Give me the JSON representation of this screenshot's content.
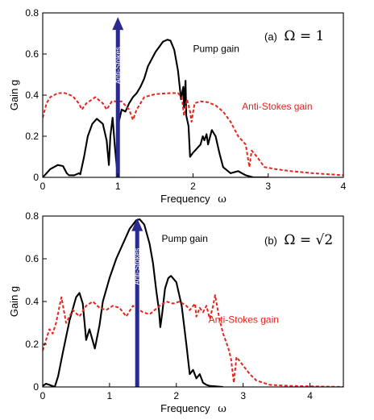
{
  "chart_data": [
    {
      "type": "line",
      "panel_label_prefix": "(a)",
      "panel_label_eq": "Ω = 1",
      "xlabel": "Frequency",
      "xlabel_symbol": "ω",
      "ylabel": "Gain g",
      "xlim": [
        0,
        4
      ],
      "ylim": [
        0,
        0.8
      ],
      "xticks": [
        "0",
        "1",
        "2",
        "3",
        "4"
      ],
      "yticks": [
        "0",
        "0.2",
        "0.4",
        "0.6",
        "0.8"
      ],
      "xtick_values": [
        0,
        1,
        2,
        3,
        4
      ],
      "ytick_values": [
        0,
        0.2,
        0.4,
        0.6,
        0.8
      ],
      "arrow": {
        "x": 1.0,
        "y_top": 0.78,
        "label": "Anti-Stokes",
        "color": "#2a2a8f"
      },
      "series": [
        {
          "name": "Pump gain",
          "color": "#000000",
          "style": "solid",
          "points": [
            [
              0.0,
              0.0
            ],
            [
              0.05,
              0.02
            ],
            [
              0.1,
              0.04
            ],
            [
              0.2,
              0.06
            ],
            [
              0.27,
              0.055
            ],
            [
              0.32,
              0.02
            ],
            [
              0.35,
              0.01
            ],
            [
              0.42,
              0.01
            ],
            [
              0.48,
              0.02
            ],
            [
              0.5,
              0.015
            ],
            [
              0.55,
              0.1
            ],
            [
              0.6,
              0.2
            ],
            [
              0.66,
              0.26
            ],
            [
              0.72,
              0.285
            ],
            [
              0.8,
              0.26
            ],
            [
              0.85,
              0.18
            ],
            [
              0.88,
              0.06
            ],
            [
              0.9,
              0.2
            ],
            [
              0.93,
              0.29
            ],
            [
              0.96,
              0.15
            ],
            [
              0.985,
              0.05
            ],
            [
              1.0,
              0.25
            ],
            [
              1.05,
              0.33
            ],
            [
              1.1,
              0.32
            ],
            [
              1.15,
              0.36
            ],
            [
              1.2,
              0.39
            ],
            [
              1.25,
              0.41
            ],
            [
              1.3,
              0.44
            ],
            [
              1.35,
              0.48
            ],
            [
              1.4,
              0.54
            ],
            [
              1.5,
              0.61
            ],
            [
              1.6,
              0.66
            ],
            [
              1.66,
              0.67
            ],
            [
              1.7,
              0.665
            ],
            [
              1.75,
              0.62
            ],
            [
              1.8,
              0.52
            ],
            [
              1.84,
              0.38
            ],
            [
              1.86,
              0.42
            ],
            [
              1.87,
              0.44
            ],
            [
              1.88,
              0.34
            ],
            [
              1.9,
              0.47
            ],
            [
              1.91,
              0.3
            ],
            [
              1.94,
              0.25
            ],
            [
              1.96,
              0.1
            ],
            [
              2.0,
              0.12
            ],
            [
              2.05,
              0.14
            ],
            [
              2.1,
              0.16
            ],
            [
              2.13,
              0.2
            ],
            [
              2.15,
              0.18
            ],
            [
              2.18,
              0.21
            ],
            [
              2.2,
              0.16
            ],
            [
              2.25,
              0.23
            ],
            [
              2.3,
              0.2
            ],
            [
              2.35,
              0.12
            ],
            [
              2.4,
              0.05
            ],
            [
              2.5,
              0.02
            ],
            [
              2.6,
              0.03
            ],
            [
              2.7,
              0.01
            ],
            [
              2.8,
              0.0
            ],
            [
              3.0,
              0.0
            ]
          ]
        },
        {
          "name": "Anti-Stokes gain",
          "color": "#e8231c",
          "style": "dashed",
          "points": [
            [
              0.0,
              0.29
            ],
            [
              0.05,
              0.36
            ],
            [
              0.1,
              0.39
            ],
            [
              0.2,
              0.41
            ],
            [
              0.3,
              0.41
            ],
            [
              0.4,
              0.395
            ],
            [
              0.48,
              0.36
            ],
            [
              0.52,
              0.33
            ],
            [
              0.58,
              0.36
            ],
            [
              0.7,
              0.39
            ],
            [
              0.8,
              0.36
            ],
            [
              0.85,
              0.33
            ],
            [
              0.92,
              0.37
            ],
            [
              1.05,
              0.37
            ],
            [
              1.15,
              0.33
            ],
            [
              1.2,
              0.28
            ],
            [
              1.25,
              0.33
            ],
            [
              1.35,
              0.39
            ],
            [
              1.5,
              0.405
            ],
            [
              1.7,
              0.41
            ],
            [
              1.8,
              0.41
            ],
            [
              1.85,
              0.39
            ],
            [
              1.88,
              0.3
            ],
            [
              1.92,
              0.38
            ],
            [
              1.96,
              0.32
            ],
            [
              1.98,
              0.27
            ],
            [
              2.02,
              0.36
            ],
            [
              2.1,
              0.37
            ],
            [
              2.2,
              0.365
            ],
            [
              2.3,
              0.35
            ],
            [
              2.4,
              0.32
            ],
            [
              2.5,
              0.27
            ],
            [
              2.6,
              0.2
            ],
            [
              2.7,
              0.16
            ],
            [
              2.75,
              0.05
            ],
            [
              2.78,
              0.13
            ],
            [
              2.85,
              0.1
            ],
            [
              2.95,
              0.05
            ],
            [
              3.1,
              0.04
            ],
            [
              3.3,
              0.03
            ],
            [
              3.6,
              0.02
            ],
            [
              4.0,
              0.01
            ]
          ]
        }
      ],
      "annotations": [
        {
          "text": "Pump gain",
          "x": 2.0,
          "y": 0.61,
          "color": "#000000"
        },
        {
          "text": "Anti-Stokes gain",
          "x": 2.65,
          "y": 0.33,
          "color": "#e8231c"
        }
      ]
    },
    {
      "type": "line",
      "panel_label_prefix": "(b)",
      "panel_label_eq": "Ω = √2",
      "xlabel": "Frequency",
      "xlabel_symbol": "ω",
      "ylabel": "Gain g",
      "xlim": [
        0,
        4.5
      ],
      "ylim": [
        0,
        0.8
      ],
      "xticks": [
        "0",
        "1",
        "2",
        "3",
        "4"
      ],
      "yticks": [
        "0",
        "0.2",
        "0.4",
        "0.6",
        "0.8"
      ],
      "xtick_values": [
        0,
        1,
        2,
        3,
        4
      ],
      "ytick_values": [
        0,
        0.2,
        0.4,
        0.6,
        0.8
      ],
      "arrow": {
        "x": 1.414,
        "y_top": 0.79,
        "label": "Anti-Stokes",
        "color": "#2a2a8f"
      },
      "series": [
        {
          "name": "Pump gain",
          "color": "#000000",
          "style": "solid",
          "points": [
            [
              0.0,
              0.005
            ],
            [
              0.05,
              0.015
            ],
            [
              0.1,
              0.01
            ],
            [
              0.18,
              0.0
            ],
            [
              0.23,
              0.05
            ],
            [
              0.3,
              0.16
            ],
            [
              0.4,
              0.31
            ],
            [
              0.5,
              0.42
            ],
            [
              0.55,
              0.44
            ],
            [
              0.6,
              0.39
            ],
            [
              0.65,
              0.22
            ],
            [
              0.7,
              0.27
            ],
            [
              0.78,
              0.18
            ],
            [
              0.85,
              0.29
            ],
            [
              0.9,
              0.4
            ],
            [
              1.0,
              0.51
            ],
            [
              1.1,
              0.6
            ],
            [
              1.2,
              0.67
            ],
            [
              1.3,
              0.74
            ],
            [
              1.4,
              0.78
            ],
            [
              1.45,
              0.785
            ],
            [
              1.52,
              0.76
            ],
            [
              1.6,
              0.67
            ],
            [
              1.65,
              0.58
            ],
            [
              1.7,
              0.45
            ],
            [
              1.74,
              0.36
            ],
            [
              1.76,
              0.28
            ],
            [
              1.79,
              0.35
            ],
            [
              1.83,
              0.46
            ],
            [
              1.88,
              0.51
            ],
            [
              1.92,
              0.52
            ],
            [
              2.0,
              0.49
            ],
            [
              2.08,
              0.38
            ],
            [
              2.15,
              0.2
            ],
            [
              2.2,
              0.06
            ],
            [
              2.25,
              0.08
            ],
            [
              2.3,
              0.04
            ],
            [
              2.35,
              0.06
            ],
            [
              2.4,
              0.02
            ],
            [
              2.45,
              0.01
            ],
            [
              2.5,
              0.005
            ],
            [
              2.7,
              0.0
            ]
          ]
        },
        {
          "name": "Anti-Stokes gain",
          "color": "#e8231c",
          "style": "dashed",
          "points": [
            [
              0.0,
              0.17
            ],
            [
              0.05,
              0.22
            ],
            [
              0.1,
              0.27
            ],
            [
              0.15,
              0.25
            ],
            [
              0.2,
              0.3
            ],
            [
              0.28,
              0.42
            ],
            [
              0.35,
              0.3
            ],
            [
              0.45,
              0.36
            ],
            [
              0.55,
              0.33
            ],
            [
              0.65,
              0.38
            ],
            [
              0.75,
              0.4
            ],
            [
              0.85,
              0.37
            ],
            [
              0.95,
              0.36
            ],
            [
              1.05,
              0.38
            ],
            [
              1.15,
              0.37
            ],
            [
              1.25,
              0.33
            ],
            [
              1.35,
              0.38
            ],
            [
              1.5,
              0.35
            ],
            [
              1.6,
              0.34
            ],
            [
              1.75,
              0.38
            ],
            [
              1.85,
              0.4
            ],
            [
              1.95,
              0.39
            ],
            [
              2.05,
              0.4
            ],
            [
              2.15,
              0.38
            ],
            [
              2.2,
              0.36
            ],
            [
              2.28,
              0.39
            ],
            [
              2.3,
              0.33
            ],
            [
              2.35,
              0.37
            ],
            [
              2.4,
              0.35
            ],
            [
              2.45,
              0.38
            ],
            [
              2.5,
              0.32
            ],
            [
              2.55,
              0.38
            ],
            [
              2.58,
              0.43
            ],
            [
              2.62,
              0.36
            ],
            [
              2.65,
              0.31
            ],
            [
              2.7,
              0.25
            ],
            [
              2.78,
              0.18
            ],
            [
              2.82,
              0.13
            ],
            [
              2.86,
              0.02
            ],
            [
              2.9,
              0.14
            ],
            [
              3.0,
              0.1
            ],
            [
              3.1,
              0.06
            ],
            [
              3.2,
              0.03
            ],
            [
              3.4,
              0.01
            ],
            [
              3.7,
              0.005
            ],
            [
              4.5,
              0.0
            ]
          ]
        }
      ],
      "annotations": [
        {
          "text": "Pump gain",
          "x": 1.78,
          "y": 0.68,
          "color": "#000000"
        },
        {
          "text": "Anti-Stokes gain",
          "x": 2.48,
          "y": 0.3,
          "color": "#e8231c"
        }
      ]
    }
  ]
}
